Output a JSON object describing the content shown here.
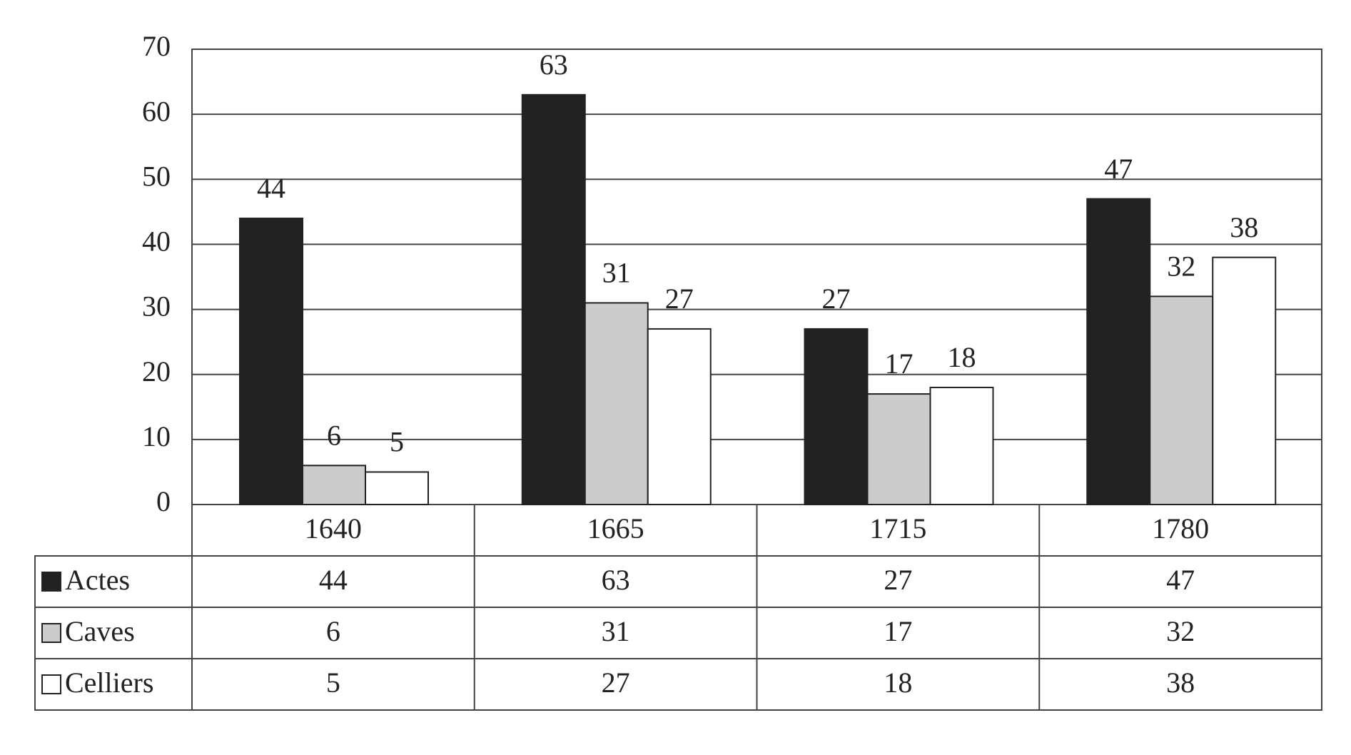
{
  "chart_data": {
    "type": "bar",
    "categories": [
      "1640",
      "1665",
      "1715",
      "1780"
    ],
    "series": [
      {
        "name": "Actes",
        "color": "#222222",
        "values": [
          44,
          63,
          27,
          47
        ]
      },
      {
        "name": "Caves",
        "color": "#cccccc",
        "values": [
          6,
          31,
          17,
          32
        ]
      },
      {
        "name": "Celliers",
        "color": "#ffffff",
        "values": [
          5,
          27,
          18,
          38
        ]
      }
    ],
    "ylim": [
      0,
      70
    ],
    "yticks": [
      0,
      10,
      20,
      30,
      40,
      50,
      60,
      70
    ],
    "grid": true
  }
}
